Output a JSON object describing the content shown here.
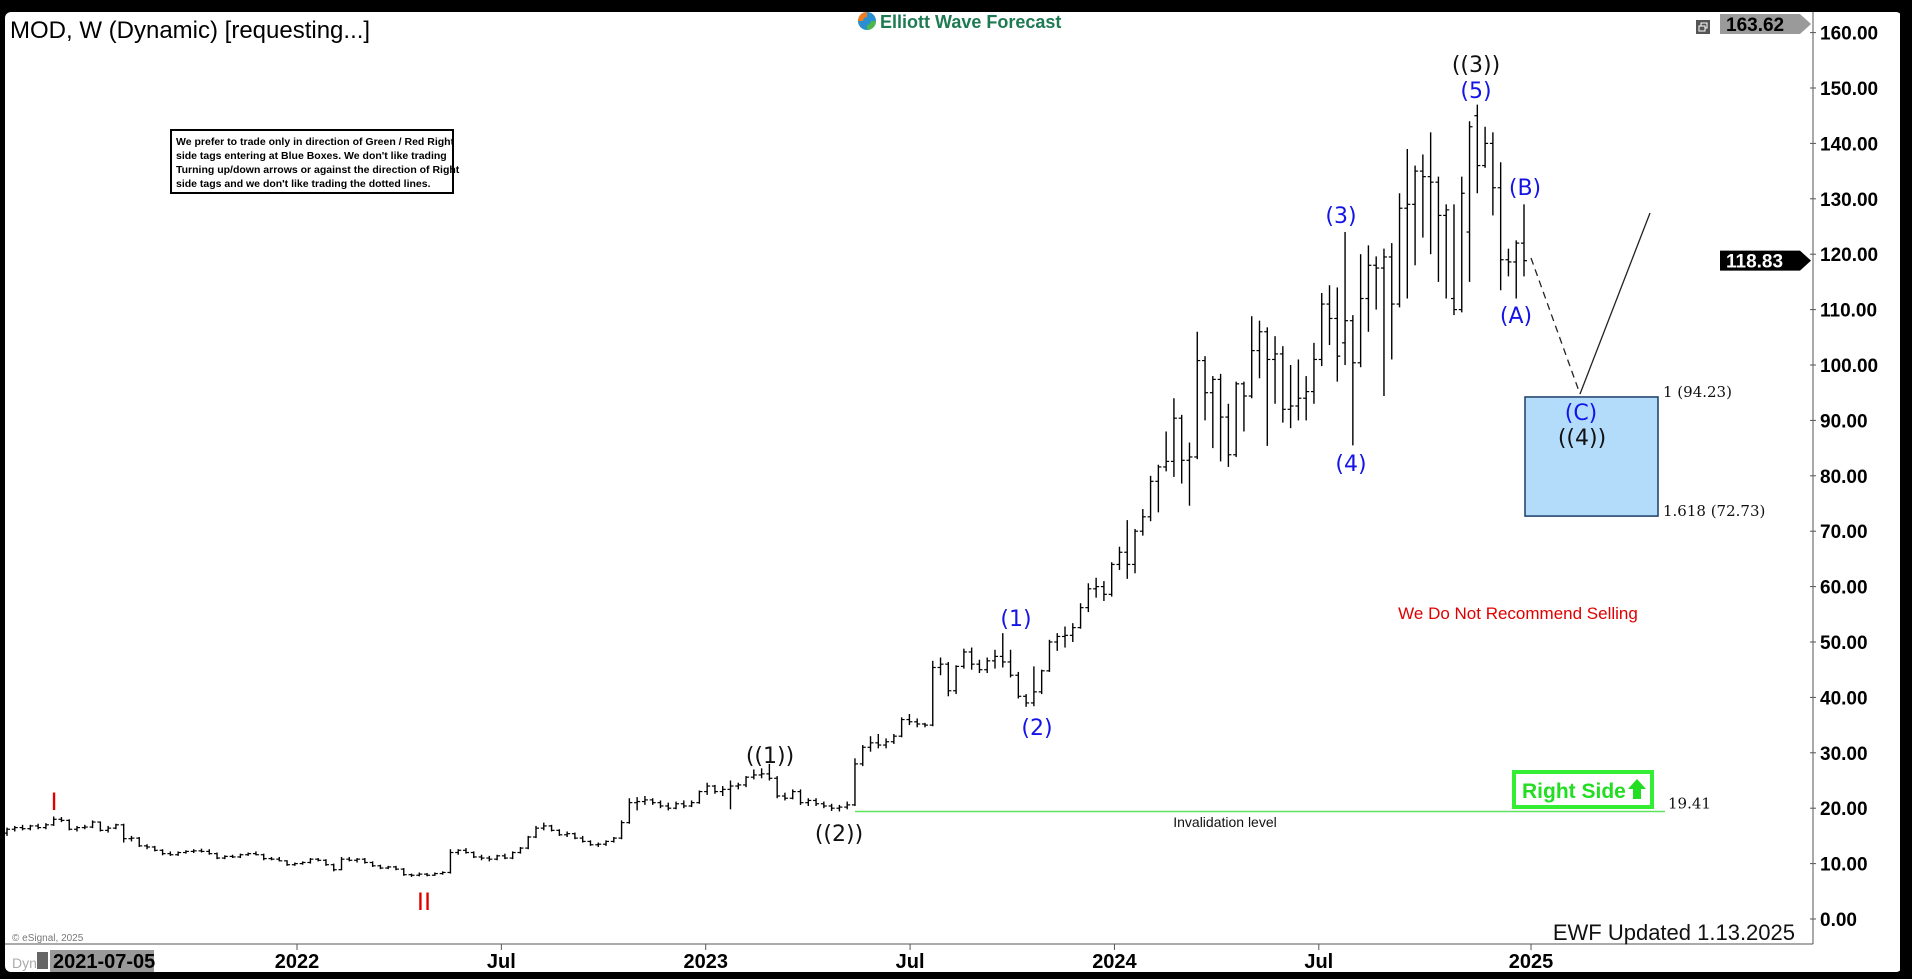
{
  "header": {
    "title": "MOD, W (Dynamic) [requesting...]"
  },
  "logo": {
    "text": "Elliott Wave Forecast"
  },
  "notice": {
    "lines": [
      "We prefer to trade only in direction of Green / Red Right",
      "side tags entering at Blue Boxes. We don't like trading",
      "Turning up/down arrows or against the direction of Right",
      "side tags and we don't like trading the dotted lines."
    ]
  },
  "footer": {
    "copyright": "© eSignal, 2025",
    "updated": "EWF Updated 1.13.2025",
    "dyn": "Dyn",
    "cursor_date": "2021-07-05"
  },
  "colors": {
    "wave_blue": "#1414e6",
    "cycle_red": "#e00000",
    "invalidation_green": "#5fe35f",
    "right_side_green": "#22dd22",
    "blue_box": "#b3dcfb"
  },
  "annotations": {
    "cycle_I": "I",
    "cycle_II": "II",
    "w1": "((1))",
    "w2": "((2))",
    "w3": "((3))",
    "w4": "((4))",
    "s1": "(1)",
    "s2": "(2)",
    "s3": "(3)",
    "s4": "(4)",
    "s5": "(5)",
    "A": "(A)",
    "B": "(B)",
    "C": "(C)",
    "fib_1": "1 (94.23)",
    "fib_1618": "1.618 (72.73)",
    "blue_box_top": 94.23,
    "blue_box_bottom": 72.73,
    "invalidation_value": 19.41,
    "invalidation_label": "19.41",
    "invalidation_text": "Invalidation level",
    "no_sell": "We Do Not Recommend Selling",
    "right_side": "Right Side",
    "right_side_icon": "up-arrow-icon"
  },
  "chart_data": {
    "type": "ohlc",
    "symbol": "MOD",
    "interval": "W",
    "ylim": [
      0,
      163.62
    ],
    "grid": false,
    "last_price": "118.83",
    "top_price": "163.62",
    "y_ticks": [
      {
        "value": 160,
        "label": "160.00"
      },
      {
        "value": 150,
        "label": "150.00"
      },
      {
        "value": 140,
        "label": "140.00"
      },
      {
        "value": 130,
        "label": "130.00"
      },
      {
        "value": 120,
        "label": "120.00"
      },
      {
        "value": 110,
        "label": "110.00"
      },
      {
        "value": 100,
        "label": "100.00"
      },
      {
        "value": 90,
        "label": "90.00"
      },
      {
        "value": 80,
        "label": "80.00"
      },
      {
        "value": 70,
        "label": "70.00"
      },
      {
        "value": 60,
        "label": "60.00"
      },
      {
        "value": 50,
        "label": "50.00"
      },
      {
        "value": 40,
        "label": "40.00"
      },
      {
        "value": 30,
        "label": "30.00"
      },
      {
        "value": 20,
        "label": "20.00"
      },
      {
        "value": 10,
        "label": "10.00"
      },
      {
        "value": 0,
        "label": "0.00"
      }
    ],
    "x_ticks": [
      {
        "date": "2022-01-03",
        "label": "2022"
      },
      {
        "date": "2022-07-04",
        "label": "Jul"
      },
      {
        "date": "2023-01-02",
        "label": "2023"
      },
      {
        "date": "2023-07-03",
        "label": "Jul"
      },
      {
        "date": "2024-01-01",
        "label": "2024"
      },
      {
        "date": "2024-07-01",
        "label": "Jul"
      },
      {
        "date": "2025-01-06",
        "label": "2025"
      }
    ],
    "bars": [
      [
        15.5,
        16.5,
        15,
        16.2
      ],
      [
        16.2,
        16.8,
        15.8,
        16.5
      ],
      [
        16.5,
        17,
        16,
        16.3
      ],
      [
        16.3,
        17,
        16,
        16.8
      ],
      [
        16.8,
        17.2,
        16.2,
        16.5
      ],
      [
        16.5,
        17.3,
        16.2,
        17
      ],
      [
        17,
        18.5,
        16.8,
        18
      ],
      [
        18,
        18.4,
        17.5,
        17.8
      ],
      [
        17.8,
        18,
        16,
        16.2
      ],
      [
        16.2,
        16.8,
        15.8,
        16.5
      ],
      [
        16.5,
        17,
        16.2,
        16.6
      ],
      [
        16.6,
        17.8,
        16.4,
        17.5
      ],
      [
        17.5,
        17.6,
        15.8,
        16
      ],
      [
        16,
        16.8,
        15.6,
        16.4
      ],
      [
        16.4,
        17.2,
        16.2,
        17
      ],
      [
        17,
        17.2,
        13.8,
        14.5
      ],
      [
        14.5,
        15,
        14,
        14.6
      ],
      [
        14.6,
        14.8,
        13,
        13.2
      ],
      [
        13.2,
        13.5,
        12.6,
        13
      ],
      [
        13,
        13.2,
        12.2,
        12.4
      ],
      [
        12.4,
        12.6,
        11.5,
        11.8
      ],
      [
        11.8,
        12.2,
        11.4,
        11.6
      ],
      [
        11.6,
        12.2,
        11.4,
        12
      ],
      [
        12,
        12.4,
        11.8,
        12.2
      ],
      [
        12.2,
        12.6,
        11.9,
        12.3
      ],
      [
        12.3,
        12.7,
        12,
        12.2
      ],
      [
        12.2,
        12.6,
        11.6,
        11.8
      ],
      [
        11.8,
        12,
        10.8,
        11
      ],
      [
        11,
        11.5,
        10.8,
        11.3
      ],
      [
        11.3,
        11.6,
        11,
        11.2
      ],
      [
        11.2,
        11.8,
        11,
        11.6
      ],
      [
        11.6,
        12,
        11.4,
        11.8
      ],
      [
        11.8,
        12.2,
        11.5,
        11.6
      ],
      [
        11.6,
        11.8,
        10.6,
        10.9
      ],
      [
        10.9,
        11.2,
        10.6,
        10.8
      ],
      [
        10.8,
        11.2,
        10.4,
        10.5
      ],
      [
        10.5,
        10.6,
        9.6,
        9.8
      ],
      [
        9.8,
        10.2,
        9.6,
        10
      ],
      [
        10,
        10.4,
        9.8,
        10.2
      ],
      [
        10.2,
        11,
        10,
        10.8
      ],
      [
        10.8,
        11,
        10.4,
        10.6
      ],
      [
        10.6,
        10.8,
        9.6,
        9.8
      ],
      [
        9.8,
        10,
        8.6,
        8.9
      ],
      [
        8.9,
        11.2,
        8.8,
        10.8
      ],
      [
        10.8,
        11.2,
        10.4,
        10.6
      ],
      [
        10.6,
        11,
        10.2,
        10.8
      ],
      [
        10.8,
        11,
        10,
        10.2
      ],
      [
        10.2,
        10.4,
        9.4,
        9.6
      ],
      [
        9.6,
        9.8,
        9,
        9.2
      ],
      [
        9.2,
        9.6,
        9,
        9.4
      ],
      [
        9.4,
        9.6,
        8.8,
        9
      ],
      [
        9,
        9.2,
        7.8,
        8
      ],
      [
        8,
        8.2,
        7.6,
        7.9
      ],
      [
        7.9,
        8.4,
        7.7,
        8.1
      ],
      [
        8.1,
        8.3,
        7.7,
        7.9
      ],
      [
        7.9,
        8.4,
        7.8,
        8.2
      ],
      [
        8.2,
        8.6,
        8,
        8.4
      ],
      [
        8.4,
        12.6,
        8.2,
        12
      ],
      [
        12,
        12.6,
        11.6,
        12.4
      ],
      [
        12.4,
        12.8,
        11.8,
        12
      ],
      [
        12,
        12.2,
        11,
        11.2
      ],
      [
        11.2,
        11.6,
        10.6,
        11
      ],
      [
        11,
        11.4,
        10.4,
        10.8
      ],
      [
        10.8,
        11.6,
        10.6,
        11.4
      ],
      [
        11.4,
        11.8,
        10.8,
        11
      ],
      [
        11,
        12.2,
        10.8,
        12
      ],
      [
        12,
        13,
        11.8,
        12.8
      ],
      [
        12.8,
        15,
        12.6,
        14.8
      ],
      [
        14.8,
        16.8,
        14.6,
        16.4
      ],
      [
        16.4,
        17.4,
        16,
        16.8
      ],
      [
        16.8,
        17,
        15.8,
        16
      ],
      [
        16,
        16.2,
        15,
        15.2
      ],
      [
        15.2,
        15.8,
        14.8,
        15.4
      ],
      [
        15.4,
        15.6,
        14.4,
        14.6
      ],
      [
        14.6,
        15,
        13.8,
        14
      ],
      [
        14,
        14.2,
        13.2,
        13.4
      ],
      [
        13.4,
        13.8,
        13,
        13.5
      ],
      [
        13.5,
        14.2,
        13.2,
        14
      ],
      [
        14,
        14.8,
        13.8,
        14.6
      ],
      [
        14.6,
        17.8,
        14.4,
        17.4
      ],
      [
        17.4,
        21.8,
        17.2,
        21
      ],
      [
        21,
        22,
        19.6,
        21.2
      ],
      [
        21.2,
        22.2,
        20.6,
        21.5
      ],
      [
        21.5,
        21.8,
        20.6,
        21
      ],
      [
        21,
        21.4,
        20,
        20.4
      ],
      [
        20.4,
        21,
        19.6,
        20
      ],
      [
        20,
        21.2,
        19.8,
        20.8
      ],
      [
        20.8,
        21.4,
        20,
        20.4
      ],
      [
        20.4,
        21.4,
        20.2,
        21
      ],
      [
        21,
        23.2,
        20.8,
        23
      ],
      [
        23,
        24.6,
        22.4,
        24
      ],
      [
        24,
        24.2,
        22.6,
        23
      ],
      [
        23,
        24,
        22.2,
        23.4
      ],
      [
        23.4,
        25,
        19.8,
        24
      ],
      [
        24,
        24.6,
        23.4,
        24.2
      ],
      [
        24.2,
        25.8,
        23.8,
        25.6
      ],
      [
        25.6,
        27,
        25.2,
        26
      ],
      [
        26,
        27.2,
        25.4,
        26.2
      ],
      [
        26.2,
        28,
        25,
        25.4
      ],
      [
        25.4,
        25.8,
        21.8,
        22.2
      ],
      [
        22.2,
        22.8,
        21.4,
        21.8
      ],
      [
        21.8,
        23.4,
        21.6,
        23
      ],
      [
        23,
        23.4,
        20.6,
        21
      ],
      [
        21,
        21.8,
        20.4,
        21.4
      ],
      [
        21.4,
        21.8,
        20.4,
        20.8
      ],
      [
        20.8,
        21.2,
        20,
        20.4
      ],
      [
        20.4,
        20.8,
        19.5,
        20
      ],
      [
        20,
        20.6,
        19.41,
        20.2
      ],
      [
        20.2,
        21.2,
        19.8,
        20.6
      ],
      [
        20.6,
        29,
        20.4,
        28
      ],
      [
        28,
        31.4,
        27.6,
        31
      ],
      [
        31,
        33,
        30.2,
        31.8
      ],
      [
        31.8,
        33.4,
        30.8,
        31.4
      ],
      [
        31.4,
        32.6,
        30.8,
        32
      ],
      [
        32,
        33.4,
        31.6,
        33
      ],
      [
        33,
        36.4,
        32.8,
        36
      ],
      [
        36,
        37,
        35,
        35.6
      ],
      [
        35.6,
        36.2,
        34.6,
        35.2
      ],
      [
        35.2,
        35.4,
        34.6,
        35
      ],
      [
        35,
        46.6,
        34.8,
        45.4
      ],
      [
        45.4,
        47.2,
        44,
        46
      ],
      [
        46,
        46.4,
        40.2,
        41.2
      ],
      [
        41.2,
        45.8,
        40.6,
        45.6
      ],
      [
        45.6,
        48.8,
        45.2,
        48.2
      ],
      [
        48.2,
        49,
        45,
        46
      ],
      [
        46,
        46.8,
        44.4,
        45
      ],
      [
        45,
        47.2,
        44.4,
        46.6
      ],
      [
        46.6,
        48.6,
        45.2,
        47.4
      ],
      [
        47.4,
        51.6,
        45.4,
        46.4
      ],
      [
        46.4,
        48.6,
        43.6,
        44
      ],
      [
        44,
        44.6,
        39.8,
        40.2
      ],
      [
        40.2,
        40.6,
        38.3,
        39
      ],
      [
        39,
        45.6,
        38.4,
        41
      ],
      [
        41,
        45,
        40.6,
        44.8
      ],
      [
        44.8,
        50.4,
        44.6,
        50
      ],
      [
        50,
        51.6,
        48.4,
        51
      ],
      [
        51,
        52.8,
        49,
        51.2
      ],
      [
        51.2,
        53.4,
        50,
        52.6
      ],
      [
        52.6,
        57,
        52.4,
        56.2
      ],
      [
        56.2,
        60.6,
        55.4,
        59.6
      ],
      [
        59.6,
        61.6,
        58,
        60
      ],
      [
        60,
        61,
        57.4,
        58.6
      ],
      [
        58.6,
        64.4,
        58.2,
        64
      ],
      [
        64,
        67.2,
        63,
        66.2
      ],
      [
        66.2,
        72,
        61.4,
        64
      ],
      [
        64,
        70.4,
        62.4,
        70
      ],
      [
        70,
        74,
        69.2,
        72.6
      ],
      [
        72.6,
        80,
        71.8,
        79
      ],
      [
        79,
        82,
        73.4,
        81.6
      ],
      [
        81.6,
        88,
        80.8,
        82.6
      ],
      [
        82.6,
        94,
        79.8,
        90.4
      ],
      [
        90.4,
        91,
        78.6,
        82.8
      ],
      [
        82.8,
        86,
        74.6,
        83.4
      ],
      [
        83.4,
        106,
        83,
        100.8
      ],
      [
        100.8,
        101.6,
        90,
        95
      ],
      [
        95,
        98,
        85,
        97.4
      ],
      [
        97.4,
        98.4,
        82.6,
        90.6
      ],
      [
        90.6,
        93,
        81.6,
        83.8
      ],
      [
        83.8,
        97,
        83.4,
        96.6
      ],
      [
        96.6,
        97,
        88,
        94.4
      ],
      [
        94.4,
        108.8,
        94,
        102.6
      ],
      [
        102.6,
        108,
        97.6,
        106
      ],
      [
        106,
        106.8,
        85.4,
        101
      ],
      [
        101,
        105.2,
        93,
        102
      ],
      [
        102,
        103.4,
        89.6,
        92
      ],
      [
        92,
        100,
        88.6,
        92.6
      ],
      [
        92.6,
        101,
        90,
        94
      ],
      [
        94,
        98,
        90,
        95.2
      ],
      [
        95.2,
        104,
        93,
        101
      ],
      [
        101,
        113,
        99.8,
        111
      ],
      [
        111,
        114.4,
        103.6,
        108.4
      ],
      [
        108.4,
        114,
        97,
        101.6
      ],
      [
        104,
        124,
        100,
        108
      ],
      [
        108,
        109,
        85.5,
        100.4
      ],
      [
        100.4,
        120,
        99.6,
        112
      ],
      [
        112,
        121.6,
        106,
        118
      ],
      [
        118,
        119.6,
        110,
        117.5
      ],
      [
        117.5,
        121,
        94.4,
        119.5
      ],
      [
        119.5,
        122,
        101,
        111
      ],
      [
        111,
        131,
        110.4,
        128.3
      ],
      [
        128.3,
        139,
        112,
        129
      ],
      [
        129,
        136,
        118,
        135
      ],
      [
        135,
        138,
        123,
        134
      ],
      [
        134,
        142,
        120,
        133
      ],
      [
        133,
        134,
        115,
        127
      ],
      [
        127,
        129,
        112,
        128
      ],
      [
        112,
        129,
        109,
        110
      ],
      [
        110,
        134,
        109.5,
        131
      ],
      [
        124,
        144,
        115,
        143
      ],
      [
        145,
        147,
        131,
        136
      ],
      [
        136,
        143,
        135.6,
        140
      ],
      [
        140,
        142,
        127,
        132
      ],
      [
        132,
        136.6,
        113.5,
        119
      ],
      [
        119,
        121,
        116,
        118.6
      ],
      [
        118.6,
        122.5,
        112,
        122
      ],
      [
        122,
        129,
        116,
        118.83
      ]
    ]
  }
}
